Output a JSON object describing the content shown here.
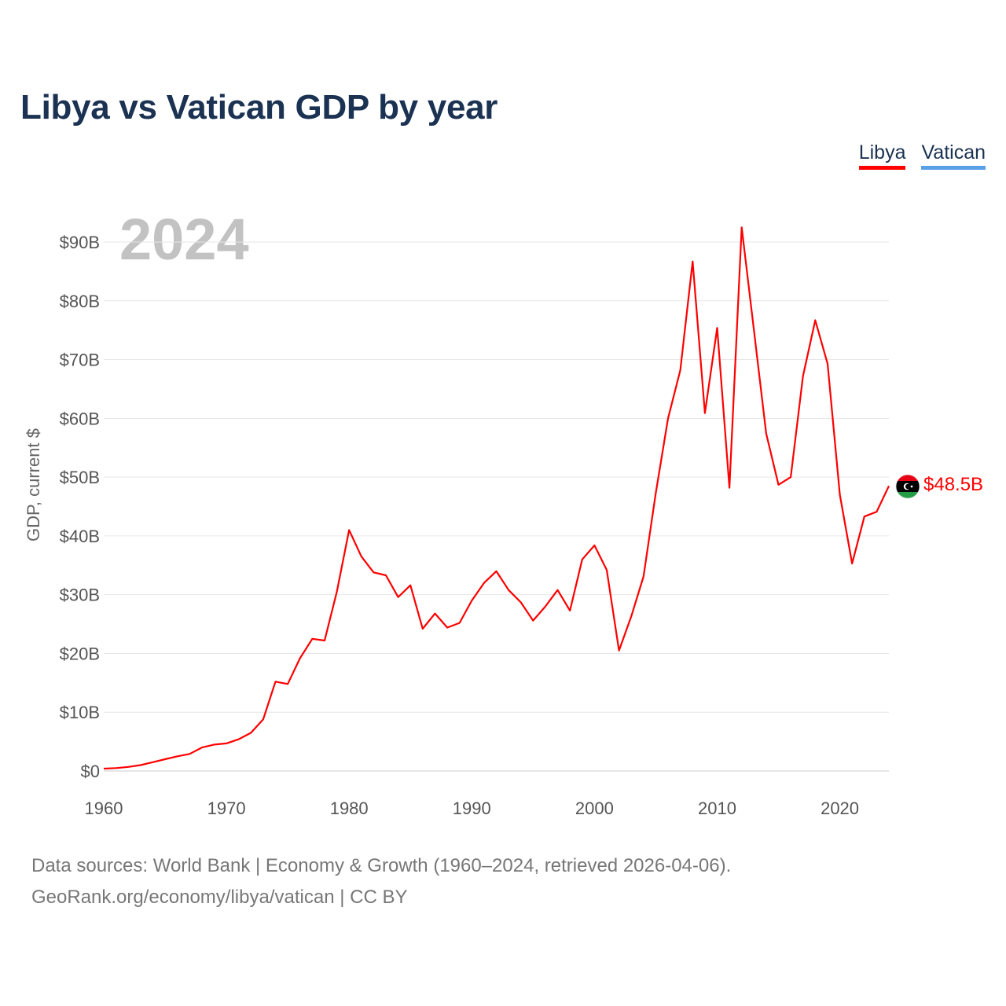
{
  "title": "Libya vs Vatican GDP by year",
  "year_label": "2024",
  "legend": [
    {
      "label": "Libya",
      "color": "#ff0000"
    },
    {
      "label": "Vatican",
      "color": "#5aa0e6"
    }
  ],
  "footer": {
    "line1": "Data sources: World Bank | Economy & Growth (1960–2024, retrieved 2026-04-06).",
    "line2": "GeoRank.org/economy/libya/vatican | CC BY"
  },
  "flag_icon": "libya-flag-icon",
  "chart_data": {
    "type": "line",
    "title": "Libya vs Vatican GDP by year",
    "xlabel": "",
    "ylabel": "GDP, current $",
    "xlim": [
      1960,
      2024
    ],
    "ylim": [
      0,
      92
    ],
    "grid": true,
    "x_ticks": [
      1960,
      1970,
      1980,
      1990,
      2000,
      2010,
      2020
    ],
    "x_tick_labels": [
      "1960",
      "1970",
      "1980",
      "1990",
      "2000",
      "2010",
      "2020"
    ],
    "y_ticks": [
      0,
      10,
      20,
      30,
      40,
      50,
      60,
      70,
      80,
      90
    ],
    "y_tick_labels": [
      "$0",
      "$10B",
      "$20B",
      "$30B",
      "$40B",
      "$50B",
      "$60B",
      "$70B",
      "$80B",
      "$90B"
    ],
    "end_label": "$48.5B",
    "series": [
      {
        "name": "Libya",
        "color": "#ff0000",
        "x": [
          1960,
          1961,
          1962,
          1963,
          1964,
          1965,
          1966,
          1967,
          1968,
          1969,
          1970,
          1971,
          1972,
          1973,
          1974,
          1975,
          1976,
          1977,
          1978,
          1979,
          1980,
          1981,
          1982,
          1983,
          1984,
          1985,
          1986,
          1987,
          1988,
          1989,
          1990,
          1991,
          1992,
          1993,
          1994,
          1995,
          1996,
          1997,
          1998,
          1999,
          2000,
          2001,
          2002,
          2003,
          2004,
          2005,
          2006,
          2007,
          2008,
          2009,
          2010,
          2011,
          2012,
          2013,
          2014,
          2015,
          2016,
          2017,
          2018,
          2019,
          2020,
          2021,
          2022,
          2023,
          2024
        ],
        "values": [
          0.4,
          0.5,
          0.7,
          1.0,
          1.5,
          2.0,
          2.5,
          2.9,
          4.0,
          4.5,
          4.7,
          5.4,
          6.5,
          8.8,
          15.2,
          14.8,
          19.2,
          22.5,
          22.2,
          30.5,
          41.0,
          36.5,
          33.8,
          33.3,
          29.6,
          31.6,
          24.2,
          26.8,
          24.4,
          25.2,
          29.0,
          32.0,
          34.0,
          30.8,
          28.7,
          25.6,
          28.0,
          30.8,
          27.3,
          36.0,
          38.4,
          34.2,
          20.5,
          26.3,
          33.1,
          47.3,
          60.0,
          68.2,
          86.7,
          60.9,
          75.4,
          48.2,
          92.5,
          75.0,
          57.4,
          48.7,
          50.0,
          67.2,
          76.7,
          69.3,
          47.0,
          35.3,
          43.3,
          44.1,
          48.5
        ]
      },
      {
        "name": "Vatican",
        "color": "#5aa0e6",
        "x": [],
        "values": []
      }
    ]
  }
}
